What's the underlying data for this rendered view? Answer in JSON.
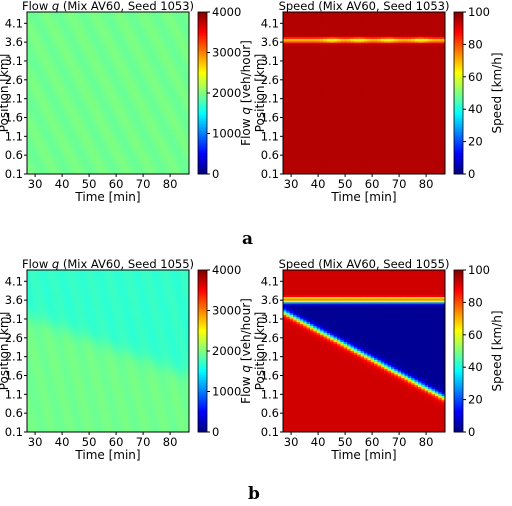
{
  "panel_labels": [
    "a",
    "b"
  ],
  "chart_data": [
    {
      "type": "heatmap",
      "title_parts": [
        "Flow ",
        "q",
        " (Mix AV60, Seed 1053)"
      ],
      "xlabel": "Time [min]",
      "ylabel": "Position [km]",
      "x_ticks": [
        30,
        40,
        50,
        60,
        70,
        80
      ],
      "y_ticks": [
        0.1,
        0.6,
        1.1,
        1.6,
        2.1,
        2.6,
        3.1,
        3.6,
        4.1
      ],
      "xlim": [
        27,
        87
      ],
      "ylim": [
        0.1,
        4.4
      ],
      "colorbar": {
        "label_parts": [
          "Flow ",
          "q",
          " [veh/hour]"
        ],
        "ticks": [
          0,
          1000,
          2000,
          3000,
          4000
        ],
        "range": [
          0,
          4000
        ],
        "colormap": "jet"
      },
      "field": {
        "kind": "uniform",
        "value": 1950
      }
    },
    {
      "type": "heatmap",
      "title_parts": [
        "Speed (Mix AV60, Seed 1053)"
      ],
      "xlabel": "Time [min]",
      "ylabel": "Position [km]",
      "x_ticks": [
        30,
        40,
        50,
        60,
        70,
        80
      ],
      "y_ticks": [
        0.1,
        0.6,
        1.1,
        1.6,
        2.1,
        2.6,
        3.1,
        3.6,
        4.1
      ],
      "xlim": [
        27,
        87
      ],
      "ylim": [
        0.1,
        4.4
      ],
      "colorbar": {
        "label_parts": [
          "Speed [km/h]"
        ],
        "ticks": [
          0,
          20,
          40,
          60,
          80,
          100
        ],
        "range": [
          0,
          100
        ],
        "colormap": "jet"
      },
      "field": {
        "kind": "speed_band",
        "base": 95,
        "band_position_km": 3.65,
        "band_speed": 68,
        "dip_times_min": [
          45,
          55,
          66,
          78
        ]
      }
    },
    {
      "type": "heatmap",
      "title_parts": [
        "Flow ",
        "q",
        " (Mix AV60, Seed 1055)"
      ],
      "xlabel": "Time [min]",
      "ylabel": "Position [km]",
      "x_ticks": [
        30,
        40,
        50,
        60,
        70,
        80
      ],
      "y_ticks": [
        0.1,
        0.6,
        1.1,
        1.6,
        2.1,
        2.6,
        3.1,
        3.6,
        4.1
      ],
      "xlim": [
        27,
        87
      ],
      "ylim": [
        0.1,
        4.4
      ],
      "colorbar": {
        "label_parts": [
          "Flow ",
          "q",
          " [veh/hour]"
        ],
        "ticks": [
          0,
          1000,
          2000,
          3000,
          4000
        ],
        "range": [
          0,
          4000
        ],
        "colormap": "jet"
      },
      "field": {
        "kind": "flow_wedge",
        "outside": 1950,
        "inside": 1700,
        "front": [
          [
            27,
            3.2
          ],
          [
            87,
            1.6
          ]
        ],
        "top_km": 4.4
      }
    },
    {
      "type": "heatmap",
      "title_parts": [
        "Speed (Mix AV60, Seed 1055)"
      ],
      "xlabel": "Time [min]",
      "ylabel": "Position [km]",
      "x_ticks": [
        30,
        40,
        50,
        60,
        70,
        80
      ],
      "y_ticks": [
        0.1,
        0.6,
        1.1,
        1.6,
        2.1,
        2.6,
        3.1,
        3.6,
        4.1
      ],
      "xlim": [
        27,
        87
      ],
      "ylim": [
        0.1,
        4.4
      ],
      "colorbar": {
        "label_parts": [
          "Speed [km/h]"
        ],
        "ticks": [
          0,
          20,
          40,
          60,
          80,
          100
        ],
        "range": [
          0,
          100
        ],
        "colormap": "jet"
      },
      "field": {
        "kind": "speed_jam",
        "free": 92,
        "jam": 2,
        "jam_top_km": 3.55,
        "front": [
          [
            27,
            3.3
          ],
          [
            87,
            1.0
          ]
        ],
        "band_position_km": 3.65,
        "band_speed": 60
      }
    }
  ]
}
